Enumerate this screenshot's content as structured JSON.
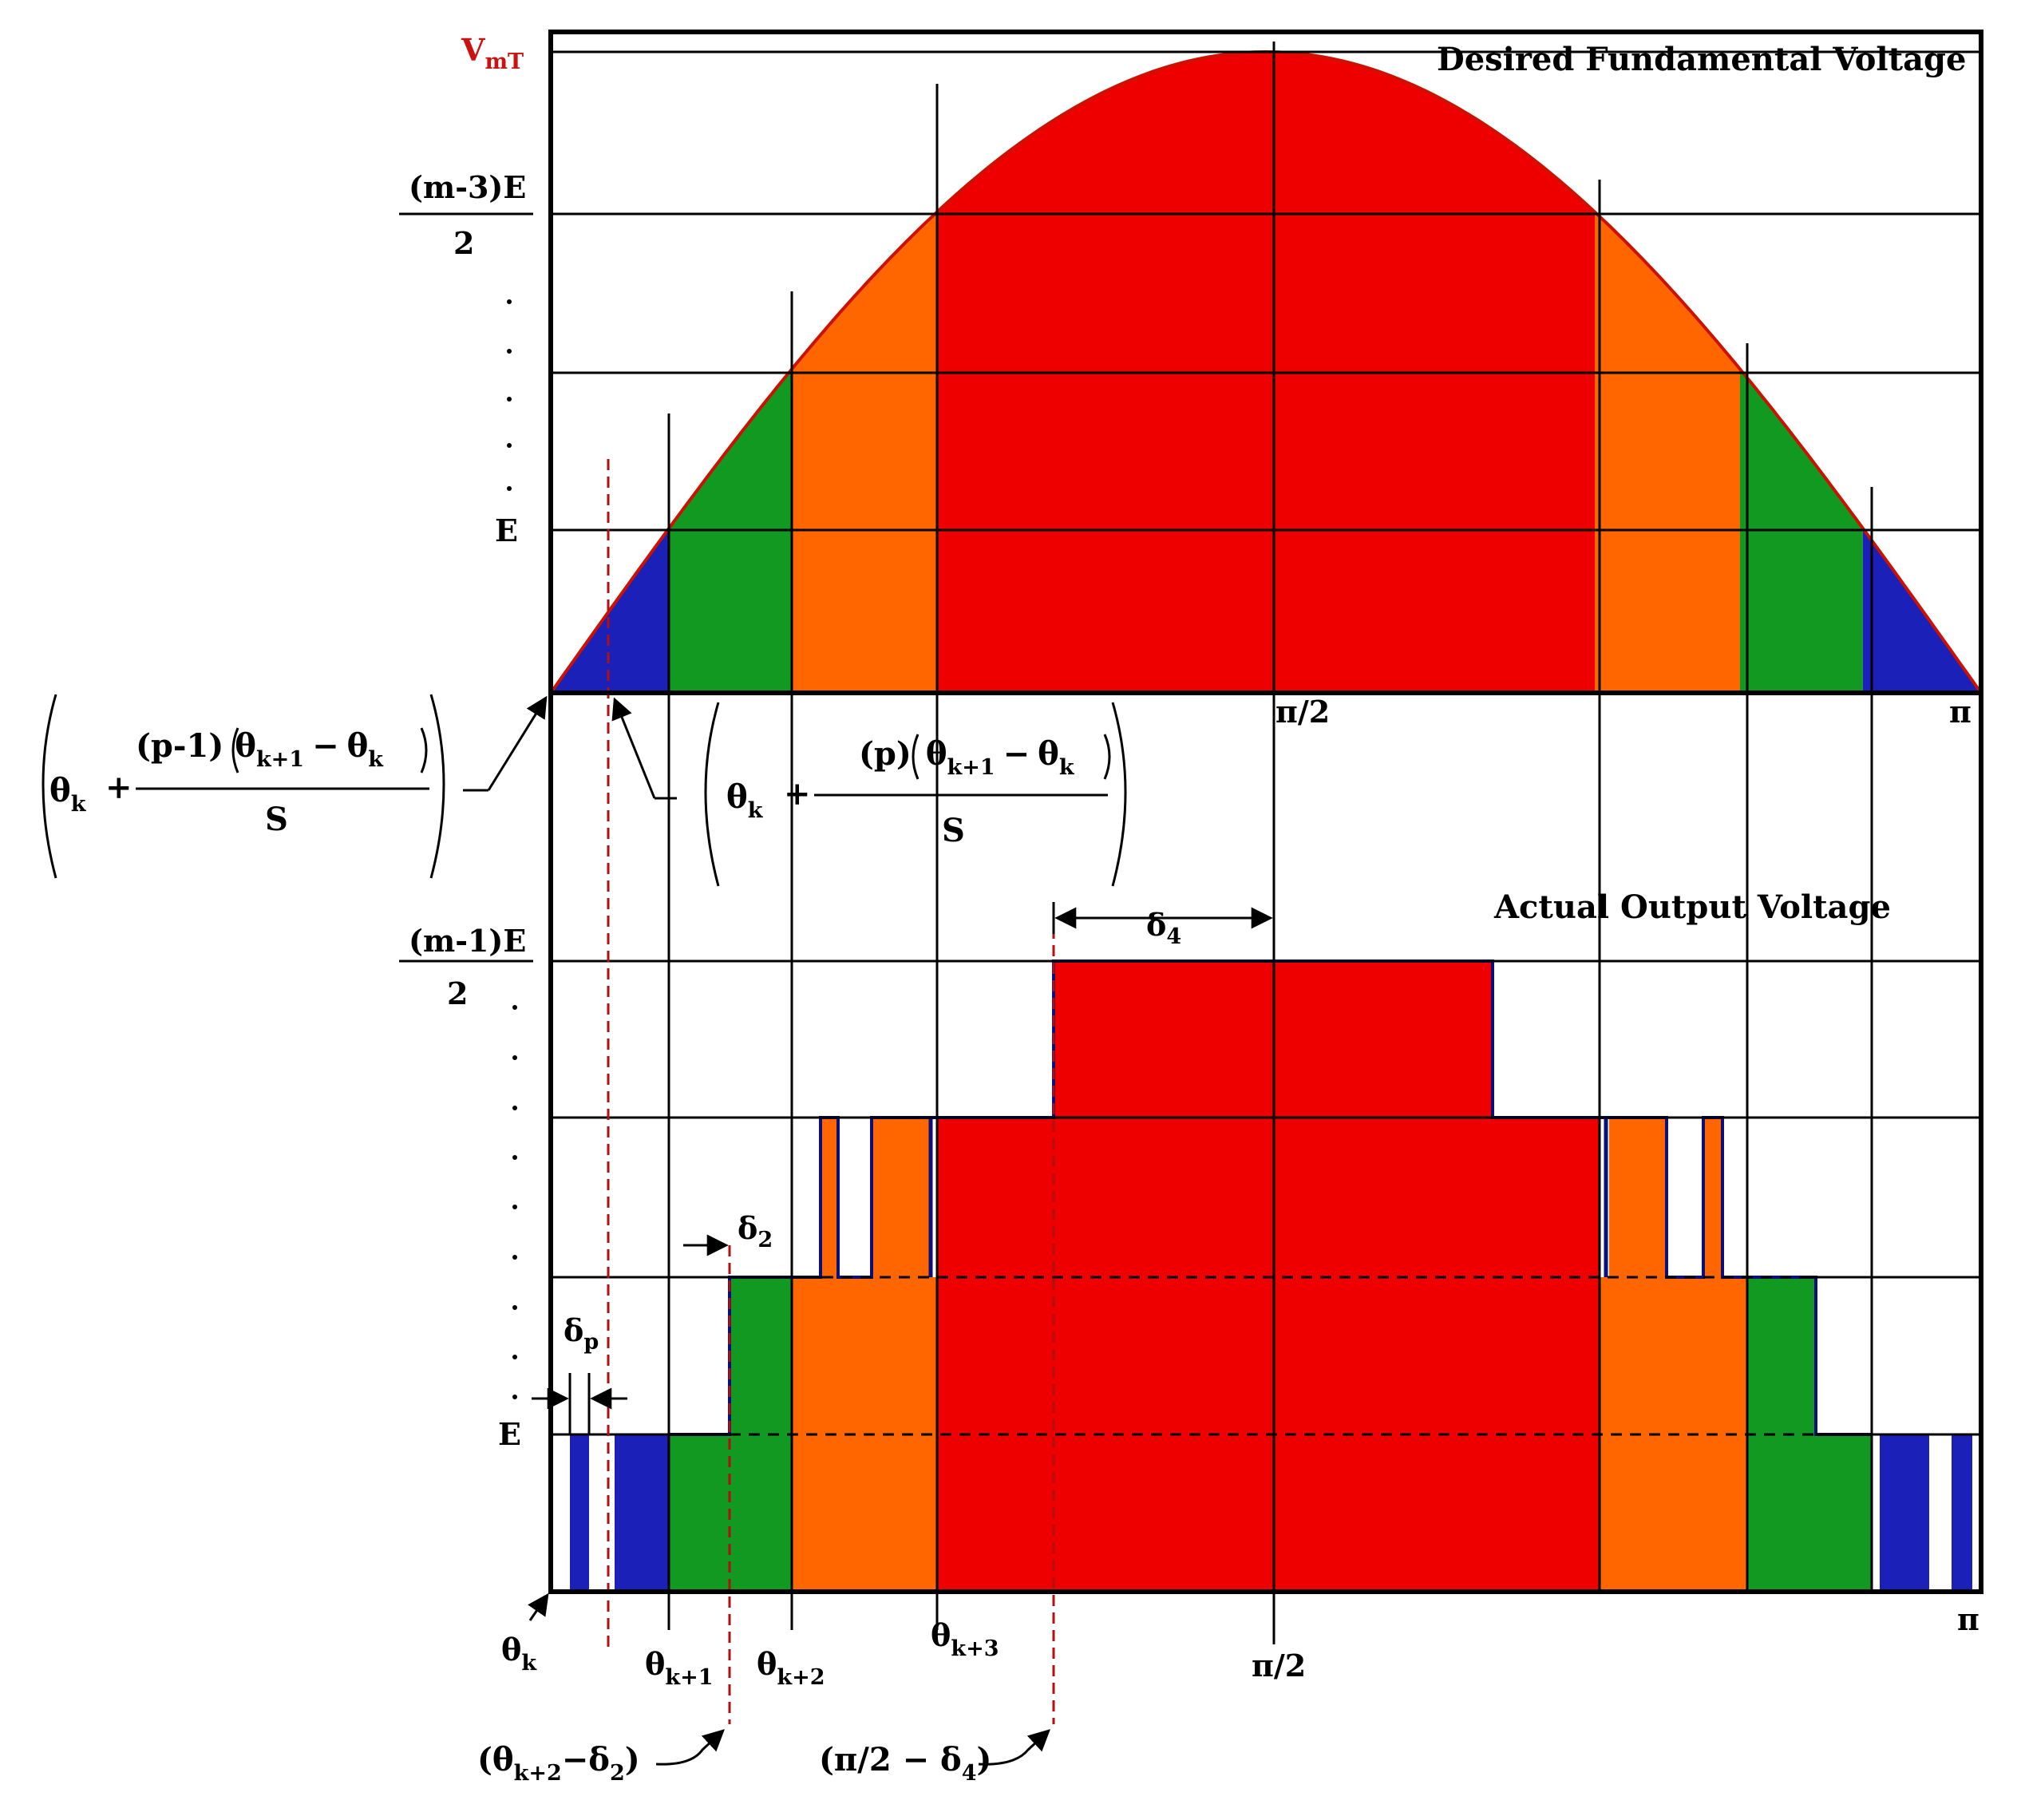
{
  "top_panel": {
    "title": "Desired Fundamental Voltage",
    "vmt_label": "V",
    "vmt_sub": "mT",
    "m3_num": "(m-3)E",
    "m3_den": "2",
    "e_label": "E",
    "half_pi": "π/2",
    "pi": "π"
  },
  "bottom_panel": {
    "title": "Actual Output Voltage",
    "m1_num": "(m-1)E",
    "m1_den": "2",
    "e_label": "E",
    "delta4": "δ",
    "delta4_sub": "4",
    "delta2": "δ",
    "delta2_sub": "2",
    "deltap": "δ",
    "deltap_sub": "p",
    "half_pi": "π/2",
    "pi": "π"
  },
  "theta_labels": {
    "theta": "θ",
    "k": "k",
    "k1": "k+1",
    "k2": "k+2",
    "k3": "k+3"
  },
  "formulas": {
    "left": {
      "theta": "θ",
      "k": "k",
      "plus": "+",
      "num": "(p-1)",
      "tk1": "θ",
      "tk1_sub": "k+1",
      "minus": "−",
      "tk": "θ",
      "tk_sub": "k",
      "den": "S"
    },
    "right": {
      "theta": "θ",
      "k": "k",
      "plus": "+",
      "num": "(p)",
      "tk1": "θ",
      "tk1_sub": "k+1",
      "minus": "−",
      "tk": "θ",
      "tk_sub": "k",
      "den": "S"
    }
  },
  "annotations": {
    "a1_open": "(θ",
    "a1_sub": "k+2",
    "a1_rest": "−δ",
    "a1_sub2": "2",
    "a1_close": ")",
    "a2_text": "(π/2 − δ",
    "a2_sub": "4",
    "a2_close": ")"
  },
  "colors": {
    "red": "#ee0000",
    "orange": "#ff6600",
    "green": "#119922",
    "blue": "#1a20b8",
    "navy": "#0b0f7a",
    "sine_stroke": "#cc1100",
    "vmt_color": "#cc1111"
  }
}
